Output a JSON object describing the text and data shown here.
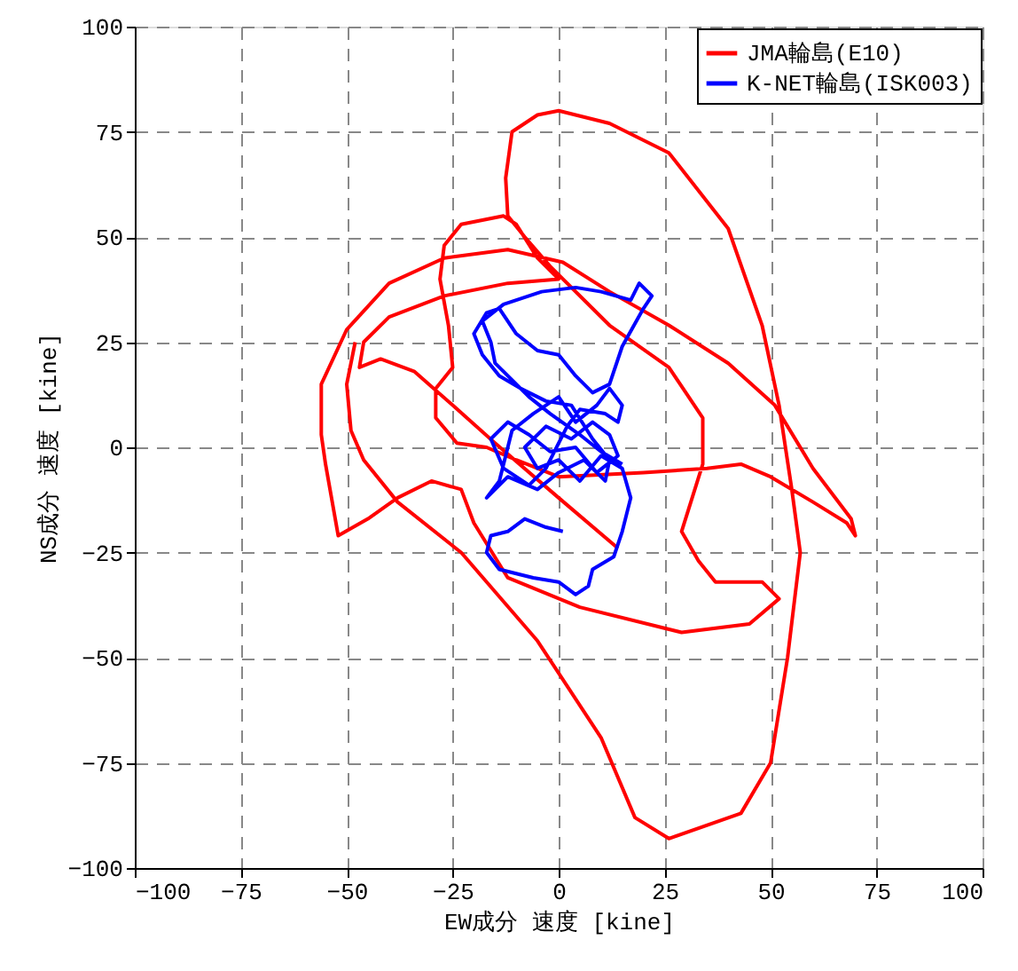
{
  "chart_data": {
    "type": "line",
    "xlabel": "EW成分 速度 [kine]",
    "ylabel": "NS成分 速度 [kine]",
    "xlim": [
      -100,
      100
    ],
    "ylim": [
      -100,
      100
    ],
    "xticks": [
      -100,
      -75,
      -50,
      -25,
      0,
      25,
      50,
      75,
      100
    ],
    "yticks": [
      -100,
      -75,
      -50,
      -25,
      0,
      25,
      50,
      75,
      100
    ],
    "grid": true,
    "legend": "top right",
    "marker": "none",
    "line_style": "solid",
    "series": [
      {
        "name": "JMA輪島(E10)",
        "color": "#ff0000",
        "x": [
          14,
          0,
          -15,
          -25,
          -34,
          -42,
          -47,
          -46,
          -40,
          -27,
          -12,
          0,
          -5,
          -10,
          -13,
          -18,
          -23,
          -27,
          -28,
          -26,
          -25,
          -29,
          -29,
          -24,
          -17,
          -10,
          0,
          20,
          35,
          43,
          50,
          60,
          68,
          70,
          69,
          60,
          51,
          40,
          26,
          12,
          1,
          -12,
          -27,
          -40,
          -50,
          -56,
          -56,
          -55,
          -52,
          -45,
          -38,
          -30,
          -23,
          -20,
          -12,
          5,
          29,
          45,
          52,
          48,
          37,
          33,
          29,
          34,
          34,
          26,
          12,
          -2,
          -8,
          -12,
          -12.5,
          -11,
          -5,
          0,
          12,
          26,
          40,
          48,
          52,
          55,
          57,
          54,
          50,
          43,
          26,
          18,
          10,
          -5,
          -23,
          -38,
          -46,
          -49,
          -50,
          -48
        ],
        "values": [
          -24,
          -12,
          1,
          10,
          18,
          21,
          19,
          25,
          31,
          36,
          39,
          40,
          45,
          53,
          55,
          54,
          53,
          48,
          40,
          29,
          19,
          14,
          7,
          1,
          0,
          -3,
          -7,
          -6,
          -5,
          -4,
          -7,
          -13,
          -18,
          -21,
          -17,
          -5,
          10,
          20,
          29,
          37,
          44,
          47,
          45,
          39,
          28,
          15,
          3,
          -4,
          -21,
          -17,
          -12,
          -8,
          -10,
          -18,
          -31,
          -38,
          -44,
          -42,
          -36,
          -32,
          -32,
          -27,
          -20,
          -4,
          7,
          19,
          29,
          43,
          50,
          55,
          64,
          75,
          79,
          80,
          77,
          70,
          52,
          29,
          10,
          -10,
          -25,
          -50,
          -75,
          -87,
          -93,
          -88,
          -69,
          -46,
          -25,
          -13,
          -3,
          4,
          15,
          25
        ]
      },
      {
        "name": "K-NET輪島(ISK003)",
        "color": "#0000ff",
        "x": [
          1,
          -3,
          -8,
          -12,
          -16,
          -17,
          -14,
          -6,
          0,
          4,
          7,
          8,
          13,
          15,
          17,
          15,
          10,
          5,
          0,
          -5,
          -8,
          -3,
          3,
          8,
          12,
          14,
          9,
          4,
          -2,
          -7,
          -12,
          -16,
          -13,
          -7,
          -3,
          2,
          5,
          11,
          14,
          15,
          12,
          9,
          4,
          0,
          -6,
          -11,
          -14,
          -17,
          -12,
          -5,
          0,
          6,
          11,
          12,
          8,
          3,
          -3,
          -9,
          -14,
          -18,
          -20,
          -17,
          -14,
          -10,
          -5,
          0,
          4,
          8,
          12,
          15,
          20,
          22,
          19,
          17,
          10,
          4,
          -4,
          -13,
          -18,
          -16,
          -15,
          -12,
          -7,
          -2,
          5,
          10,
          15
        ],
        "values": [
          -20,
          -19,
          -17,
          -20,
          -21,
          -25,
          -29,
          -31,
          -32,
          -35,
          -33,
          -29,
          -26,
          -20,
          -12,
          -5,
          -2,
          -8,
          -3,
          -5,
          0,
          5,
          2,
          6,
          3,
          -2,
          -6,
          0,
          -1,
          3,
          6,
          2,
          -5,
          -9,
          -5,
          5,
          9,
          8,
          6,
          10,
          14,
          10,
          6,
          12,
          8,
          4,
          -8,
          -12,
          -7,
          -10,
          -6,
          -3,
          -8,
          -3,
          2,
          10,
          11,
          14,
          17,
          22,
          27,
          32,
          33,
          27,
          23,
          22,
          17,
          13,
          15,
          24,
          33,
          36,
          39,
          35,
          37,
          38,
          37,
          34,
          30,
          25,
          20,
          17,
          12,
          8,
          3,
          -1,
          -4
        ]
      }
    ]
  }
}
